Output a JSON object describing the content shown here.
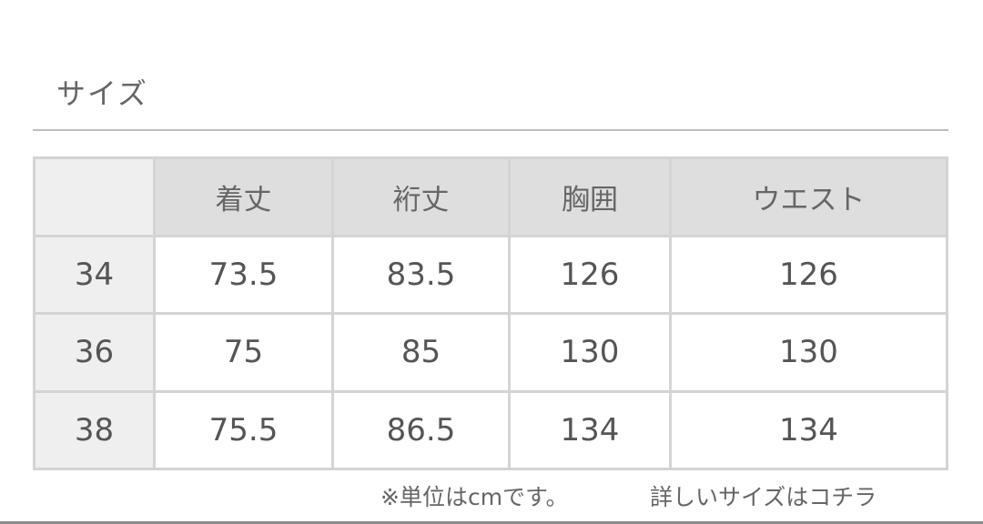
{
  "title": "サイズ",
  "table": {
    "headers": [
      "",
      "着丈",
      "裄丈",
      "胸囲",
      "ウエスト"
    ],
    "rows": [
      [
        "34",
        "73.5",
        "83.5",
        "126",
        "126"
      ],
      [
        "36",
        "75",
        "85",
        "130",
        "130"
      ],
      [
        "38",
        "75.5",
        "86.5",
        "134",
        "134"
      ]
    ]
  },
  "footer": {
    "unit_note": "※単位はcmです。",
    "details_link": "詳しいサイズはコチラ"
  }
}
